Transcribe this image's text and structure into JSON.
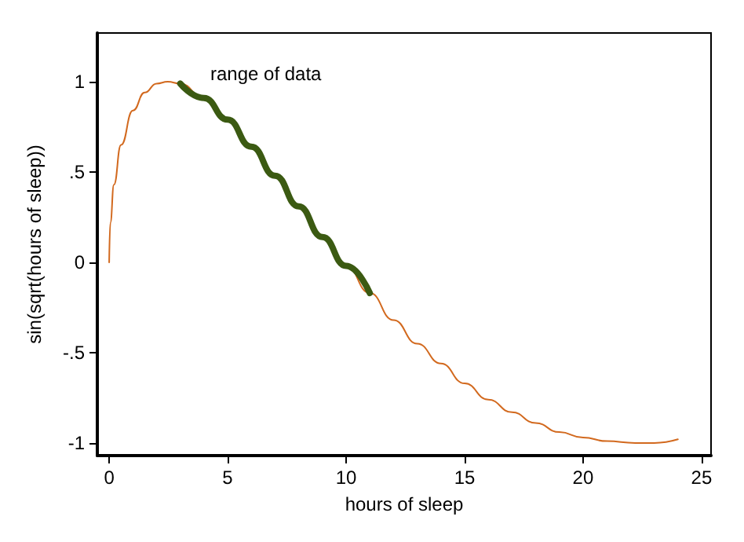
{
  "chart_data": {
    "type": "line",
    "xlabel": "hours of sleep",
    "ylabel": "sin(sqrt(hours of sleep))",
    "x": [
      0,
      0.05,
      0.2,
      0.5,
      1,
      1.5,
      2,
      2.47,
      3,
      4,
      5,
      6,
      7,
      8,
      9,
      10,
      11,
      12,
      13,
      14,
      15,
      16,
      17,
      18,
      19,
      20,
      21,
      22.2,
      23,
      24
    ],
    "series": [
      {
        "color": "#d2691e",
        "values": [
          0,
          0.22,
          0.43,
          0.65,
          0.84,
          0.94,
          0.99,
          1.0,
          0.99,
          0.91,
          0.79,
          0.64,
          0.48,
          0.31,
          0.14,
          -0.02,
          -0.17,
          -0.32,
          -0.45,
          -0.56,
          -0.67,
          -0.76,
          -0.83,
          -0.89,
          -0.94,
          -0.97,
          -0.99,
          -1.0,
          -1.0,
          -0.98
        ]
      },
      {
        "color": "#3b5a12",
        "x": [
          3,
          4,
          5,
          6,
          7,
          8,
          9,
          10,
          11
        ],
        "values": [
          0.99,
          0.91,
          0.79,
          0.64,
          0.48,
          0.31,
          0.14,
          -0.02,
          -0.17
        ]
      }
    ],
    "annotations": [
      "range of data"
    ],
    "xlim": [
      -0.5,
      25.4
    ],
    "xticks": [
      0,
      5,
      10,
      15,
      20,
      25
    ],
    "ylim": [
      -1.07,
      1.27
    ],
    "yticks": [
      {
        "value": -1,
        "label": "-1"
      },
      {
        "value": -0.5,
        "label": "-.5"
      },
      {
        "value": 0,
        "label": "0"
      },
      {
        "value": 0.5,
        "label": ".5"
      },
      {
        "value": 1,
        "label": "1"
      }
    ],
    "grid": false,
    "marker": "none",
    "line_style": "solid"
  }
}
